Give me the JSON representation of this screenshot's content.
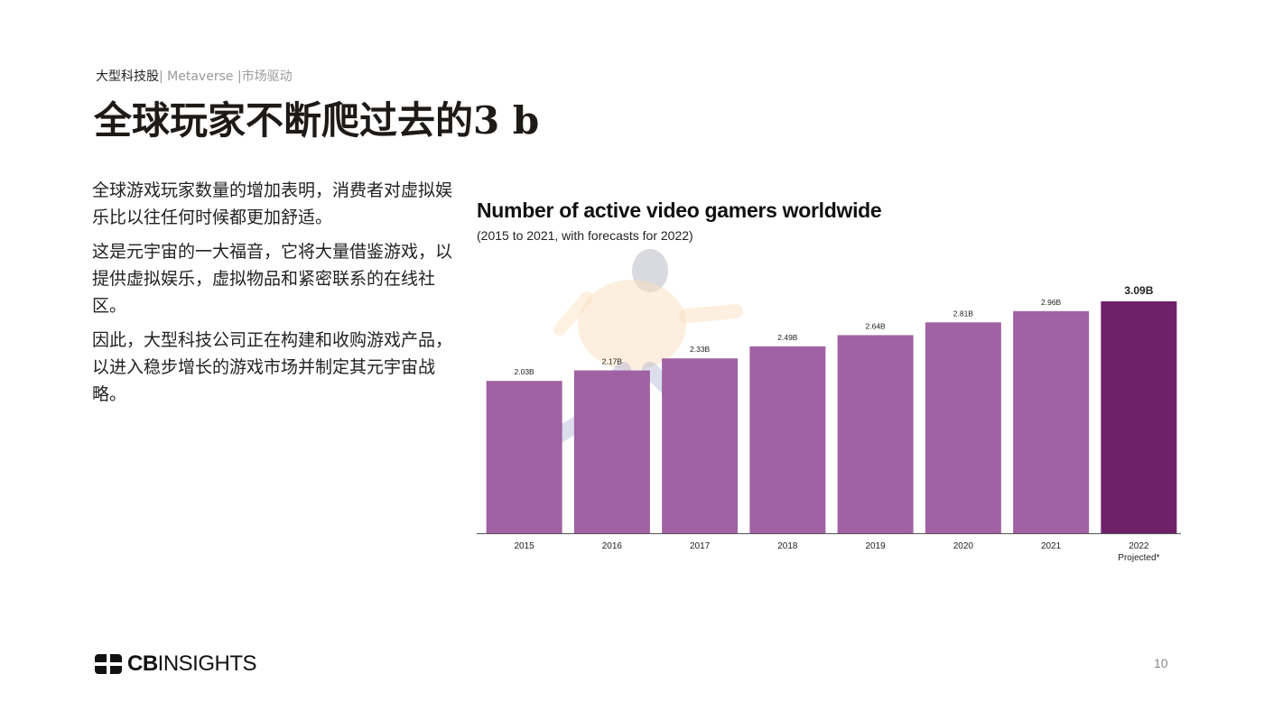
{
  "header": {
    "breadcrumb_strong": "大型科技股",
    "breadcrumb_rest": "| Metaverse |市场驱动",
    "title": "全球玩家不断爬过去的3 b"
  },
  "body": {
    "paragraphs": [
      "全球游戏玩家数量的增加表明，消费者对虚拟娱乐比以往任何时候都更加舒适。",
      "这是元宇宙的一大福音，它将大量借鉴游戏，以提供虚拟娱乐，虚拟物品和紧密联系的在线社区。",
      "因此，大型科技公司正在构建和收购游戏产品，以进入稳步增长的游戏市场并制定其元宇宙战略。"
    ]
  },
  "chart_data": {
    "type": "bar",
    "title": "Number of active video gamers worldwide",
    "subtitle": "(2015 to 2021, with forecasts for 2022)",
    "categories": [
      "2015",
      "2016",
      "2017",
      "2018",
      "2019",
      "2020",
      "2021",
      "2022"
    ],
    "category_sublabels": [
      "",
      "",
      "",
      "",
      "",
      "",
      "",
      "Projected*"
    ],
    "values": [
      2.03,
      2.17,
      2.33,
      2.49,
      2.64,
      2.81,
      2.96,
      3.09
    ],
    "value_labels": [
      "2.03B",
      "2.17B",
      "2.33B",
      "2.49B",
      "2.64B",
      "2.81B",
      "2.96B",
      "3.09B"
    ],
    "ylim": [
      0,
      3.09
    ],
    "grid": false,
    "colors": {
      "bar": "#9b5a9e",
      "highlight": "#6e2169"
    },
    "highlight_index": 7
  },
  "footer": {
    "logo_bold": "CB",
    "logo_light": "INSIGHTS",
    "page_number": "10"
  }
}
